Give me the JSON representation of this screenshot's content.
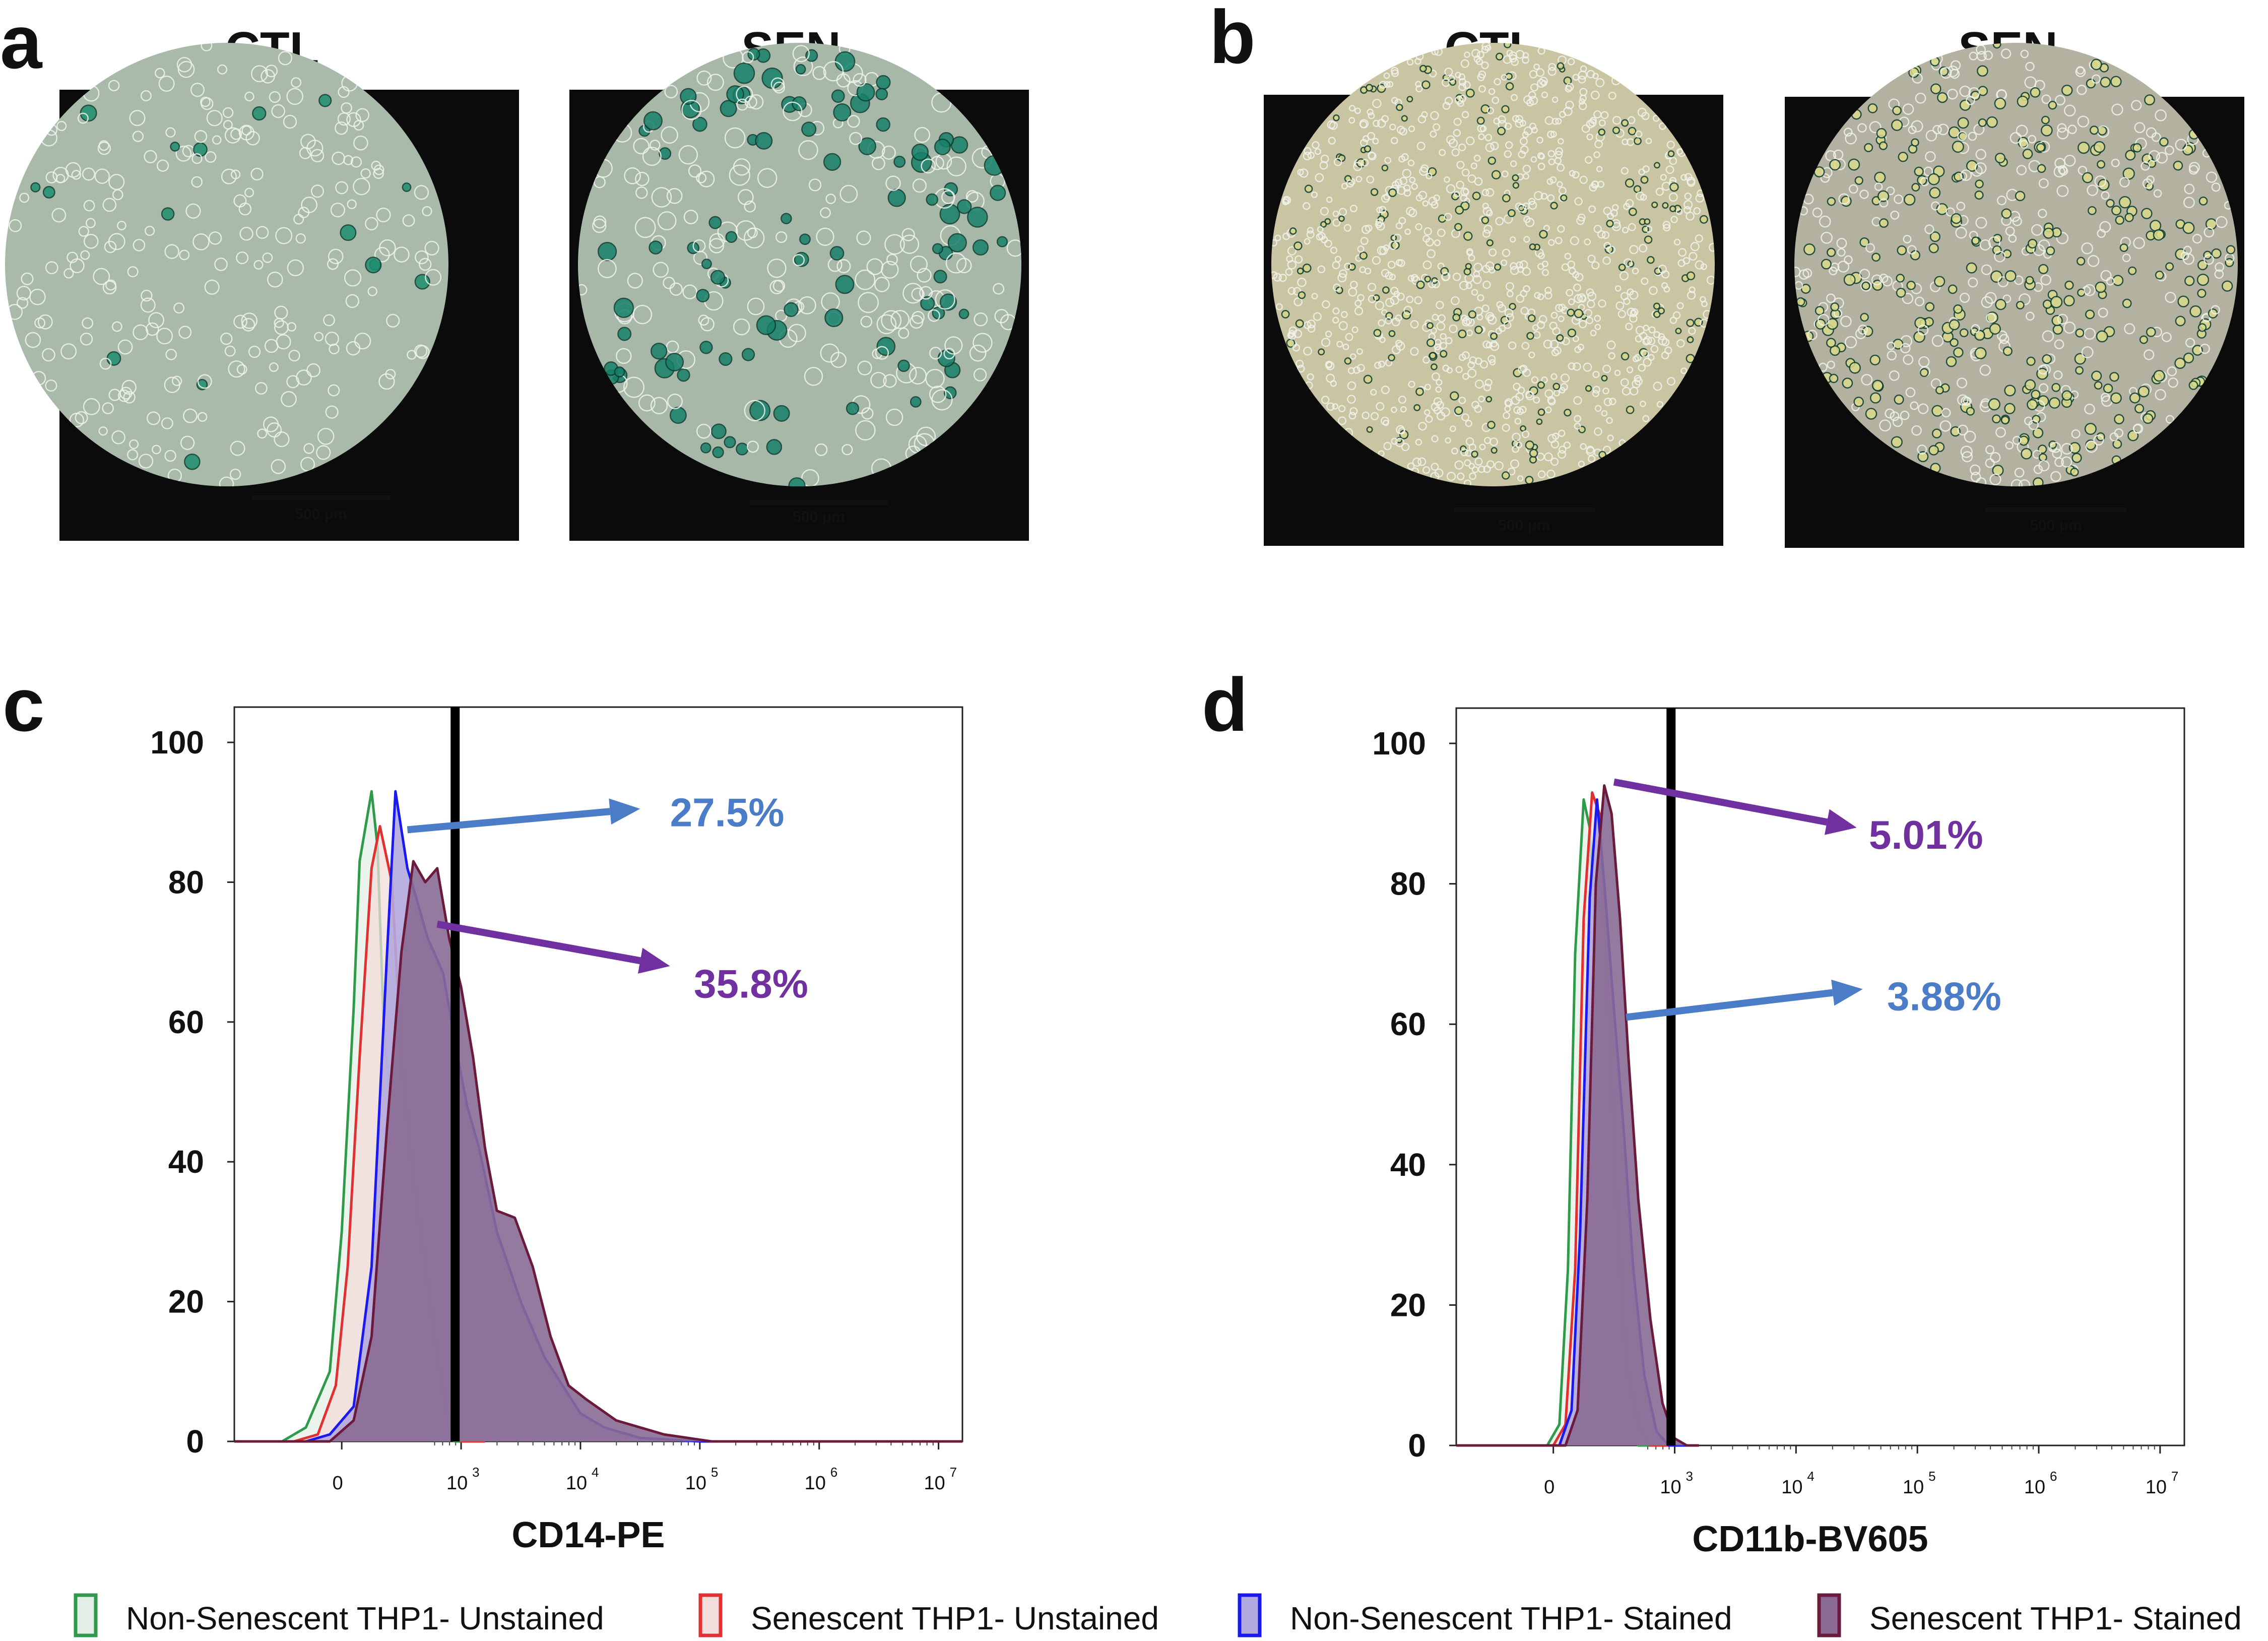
{
  "panels": {
    "a": {
      "letter": "a",
      "images": [
        {
          "label": "CTL",
          "scale_bar": "500 μm",
          "tint": "#a9b9aa",
          "stain": "#1f8f6f"
        },
        {
          "label": "SEN",
          "scale_bar": "500 μm",
          "tint": "#a7b8a9",
          "stain": "#17806a"
        }
      ]
    },
    "b": {
      "letter": "b",
      "images": [
        {
          "label": "CTL",
          "scale_bar": "500 μm",
          "tint": "#c9c4a2",
          "stain": "#d7d58a"
        },
        {
          "label": "SEN",
          "scale_bar": "500 μm",
          "tint": "#b3b1a0",
          "stain": "#dbdb8c"
        }
      ]
    },
    "c": {
      "letter": "c"
    },
    "d": {
      "letter": "d"
    }
  },
  "chart_data": [
    {
      "panel": "c",
      "type": "area",
      "xlabel": "CD14-PE",
      "ylabel": "",
      "ylim": [
        0,
        100
      ],
      "yticks": [
        "0",
        "20",
        "40",
        "60",
        "80",
        "100"
      ],
      "xticks": [
        {
          "base": "0",
          "exp": "",
          "pos": 0
        },
        {
          "base": "10",
          "exp": "3",
          "pos": 1
        },
        {
          "base": "10",
          "exp": "4",
          "pos": 2
        },
        {
          "base": "10",
          "exp": "5",
          "pos": 3
        },
        {
          "base": "10",
          "exp": "6",
          "pos": 4
        },
        {
          "base": "10",
          "exp": "7",
          "pos": 5
        }
      ],
      "xlim": [
        -0.9,
        5.2
      ],
      "gate": 0.95,
      "annotations": [
        {
          "text": "27.5%",
          "color": "#4a7cc7",
          "from": [
            0.55,
            87.5
          ],
          "to": [
            2.5,
            90.5
          ],
          "label": [
            2.75,
            90
          ]
        },
        {
          "text": "35.8%",
          "color": "#7030a0",
          "from": [
            0.8,
            74
          ],
          "to": [
            2.75,
            68
          ],
          "label": [
            2.95,
            65.5
          ]
        }
      ],
      "series": [
        {
          "name": "Non-Senescent THP1- Unstained",
          "color": "#2e9a4a",
          "fill": "#e3efe6",
          "x": [
            -0.9,
            -0.5,
            -0.3,
            -0.1,
            0.0,
            0.1,
            0.15,
            0.25,
            0.3,
            0.35,
            0.45,
            0.55,
            0.65,
            0.75,
            0.85,
            0.95,
            1.2
          ],
          "y": [
            0,
            0,
            2,
            10,
            30,
            62,
            83,
            93,
            85,
            60,
            40,
            27,
            18,
            6,
            1,
            0,
            0
          ]
        },
        {
          "name": "Senescent THP1- Unstained",
          "color": "#e03030",
          "fill": "#f3dcdc",
          "x": [
            -0.9,
            -0.4,
            -0.2,
            -0.05,
            0.05,
            0.15,
            0.25,
            0.32,
            0.42,
            0.5,
            0.6,
            0.7,
            0.8,
            0.9,
            1.0,
            1.2
          ],
          "y": [
            0,
            0,
            1,
            8,
            25,
            55,
            82,
            88,
            80,
            55,
            38,
            25,
            12,
            3,
            0,
            0
          ]
        },
        {
          "name": "Non-Senescent THP1- Stained",
          "color": "#1a1af0",
          "fill": "#b2a9de",
          "x": [
            -0.9,
            -0.3,
            -0.1,
            0.1,
            0.25,
            0.38,
            0.45,
            0.55,
            0.62,
            0.72,
            0.85,
            0.95,
            1.05,
            1.15,
            1.3,
            1.5,
            1.7,
            1.85,
            2.0,
            2.2,
            2.5,
            3.0,
            5.2
          ],
          "y": [
            0,
            0,
            1,
            5,
            25,
            70,
            93,
            82,
            78,
            72,
            67,
            57,
            48,
            42,
            30,
            20,
            12,
            8,
            4,
            2,
            0.5,
            0,
            0
          ]
        },
        {
          "name": "Senescent THP1- Stained",
          "color": "#6b1a3c",
          "fill": "#8a6b95",
          "x": [
            -0.9,
            -0.1,
            0.1,
            0.25,
            0.38,
            0.5,
            0.6,
            0.7,
            0.8,
            0.9,
            1.0,
            1.1,
            1.2,
            1.3,
            1.45,
            1.6,
            1.75,
            1.9,
            2.05,
            2.3,
            2.7,
            3.1,
            5.2
          ],
          "y": [
            0,
            0,
            3,
            15,
            45,
            70,
            83,
            80,
            82,
            72,
            65,
            55,
            42,
            33,
            32,
            25,
            15,
            8,
            6,
            3,
            1,
            0,
            0
          ]
        }
      ]
    },
    {
      "panel": "d",
      "type": "area",
      "xlabel": "CD11b-BV605",
      "ylabel": "",
      "ylim": [
        0,
        100
      ],
      "yticks": [
        "0",
        "20",
        "40",
        "60",
        "80",
        "100"
      ],
      "xticks": [
        {
          "base": "0",
          "exp": "",
          "pos": 0
        },
        {
          "base": "10",
          "exp": "3",
          "pos": 1
        },
        {
          "base": "10",
          "exp": "4",
          "pos": 2
        },
        {
          "base": "10",
          "exp": "5",
          "pos": 3
        },
        {
          "base": "10",
          "exp": "6",
          "pos": 4
        },
        {
          "base": "10",
          "exp": "7",
          "pos": 5
        }
      ],
      "xlim": [
        -0.8,
        5.2
      ],
      "gate": 0.97,
      "annotations": [
        {
          "text": "5.01%",
          "color": "#7030a0",
          "from": [
            0.5,
            94.5
          ],
          "to": [
            2.5,
            88
          ],
          "label": [
            2.6,
            87
          ]
        },
        {
          "text": "3.88%",
          "color": "#4a7cc7",
          "from": [
            0.6,
            61
          ],
          "to": [
            2.55,
            65
          ],
          "label": [
            2.75,
            64
          ]
        }
      ],
      "series": [
        {
          "name": "Non-Senescent THP1- Unstained",
          "color": "#2e9a4a",
          "fill": "#e3efe6",
          "x": [
            -0.8,
            -0.05,
            0.05,
            0.12,
            0.18,
            0.25,
            0.3,
            0.38,
            0.45,
            0.55,
            0.62,
            0.7,
            1.0
          ],
          "y": [
            0,
            0,
            3,
            25,
            70,
            92,
            88,
            60,
            30,
            10,
            2,
            0,
            0
          ]
        },
        {
          "name": "Senescent THP1- Unstained",
          "color": "#e03030",
          "fill": "#f3dcdc",
          "x": [
            -0.8,
            0.0,
            0.1,
            0.18,
            0.25,
            0.32,
            0.38,
            0.45,
            0.52,
            0.6,
            0.7,
            0.8,
            1.0
          ],
          "y": [
            0,
            0,
            3,
            25,
            75,
            93,
            90,
            65,
            35,
            12,
            3,
            0,
            0
          ]
        },
        {
          "name": "Non-Senescent THP1- Stained",
          "color": "#1a1af0",
          "fill": "#b2a9de",
          "x": [
            -0.8,
            0.05,
            0.15,
            0.22,
            0.3,
            0.36,
            0.42,
            0.5,
            0.58,
            0.66,
            0.75,
            0.85,
            0.95,
            1.1
          ],
          "y": [
            0,
            0,
            5,
            30,
            78,
            92,
            80,
            62,
            45,
            25,
            10,
            2,
            0,
            0
          ]
        },
        {
          "name": "Senescent THP1- Stained",
          "color": "#6b1a3c",
          "fill": "#8a6b95",
          "x": [
            -0.8,
            0.1,
            0.2,
            0.28,
            0.35,
            0.42,
            0.48,
            0.55,
            0.62,
            0.7,
            0.8,
            0.9,
            1.0,
            1.1,
            1.2
          ],
          "y": [
            0,
            0,
            5,
            35,
            80,
            94,
            90,
            75,
            55,
            35,
            18,
            6,
            1,
            0,
            0
          ]
        }
      ]
    }
  ],
  "legend": [
    {
      "label": "Non-Senescent THP1- Unstained",
      "color": "#2e9a4a",
      "fill": "#e3efe6"
    },
    {
      "label": "Senescent THP1- Unstained",
      "color": "#e03030",
      "fill": "#f3dcdc"
    },
    {
      "label": "Non-Senescent THP1- Stained",
      "color": "#1a1af0",
      "fill": "#b2a9de"
    },
    {
      "label": "Senescent THP1- Stained",
      "color": "#6b1a3c",
      "fill": "#8a6b95"
    }
  ]
}
